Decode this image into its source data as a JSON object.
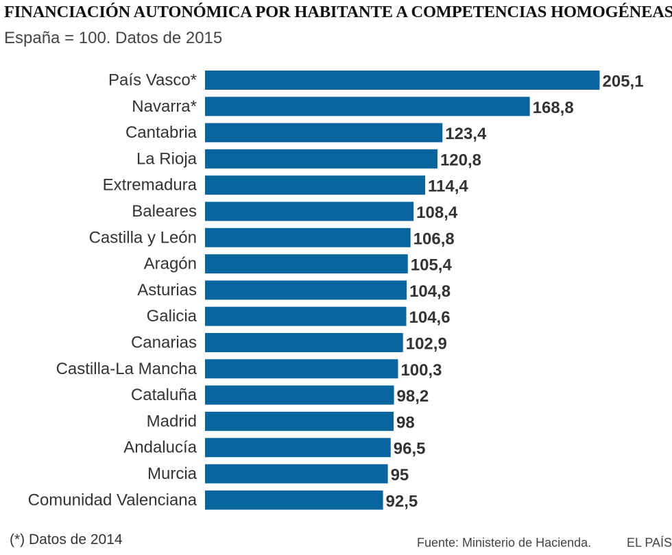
{
  "header": {
    "title": "FINANCIACIÓN AUTONÓMICA POR HABITANTE A COMPETENCIAS HOMOGÉNEAS",
    "subtitle": "España = 100. Datos de 2015"
  },
  "chart_data": {
    "type": "bar",
    "orientation": "horizontal",
    "categories": [
      "País Vasco*",
      "Navarra*",
      "Cantabria",
      "La Rioja",
      "Extremadura",
      "Baleares",
      "Castilla y León",
      "Aragón",
      "Asturias",
      "Galicia",
      "Canarias",
      "Castilla-La Mancha",
      "Cataluña",
      "Madrid",
      "Andalucía",
      "Murcia",
      "Comunidad Valenciana"
    ],
    "values": [
      205.1,
      168.8,
      123.4,
      120.8,
      114.4,
      108.4,
      106.8,
      105.4,
      104.8,
      104.6,
      102.9,
      100.3,
      98.2,
      98,
      96.5,
      95,
      92.5
    ],
    "value_labels": [
      "205,1",
      "168,8",
      "123,4",
      "120,8",
      "114,4",
      "108,4",
      "106,8",
      "105,4",
      "104,8",
      "104,6",
      "102,9",
      "100,3",
      "98,2",
      "98",
      "96,5",
      "95",
      "92,5"
    ],
    "bar_color": "#0a659e",
    "grid": false,
    "axis_visible": false
  },
  "footer": {
    "footnote": "(*) Datos de 2014",
    "source": "Fuente: Ministerio de Hacienda.",
    "brand": "EL PAÍS"
  }
}
